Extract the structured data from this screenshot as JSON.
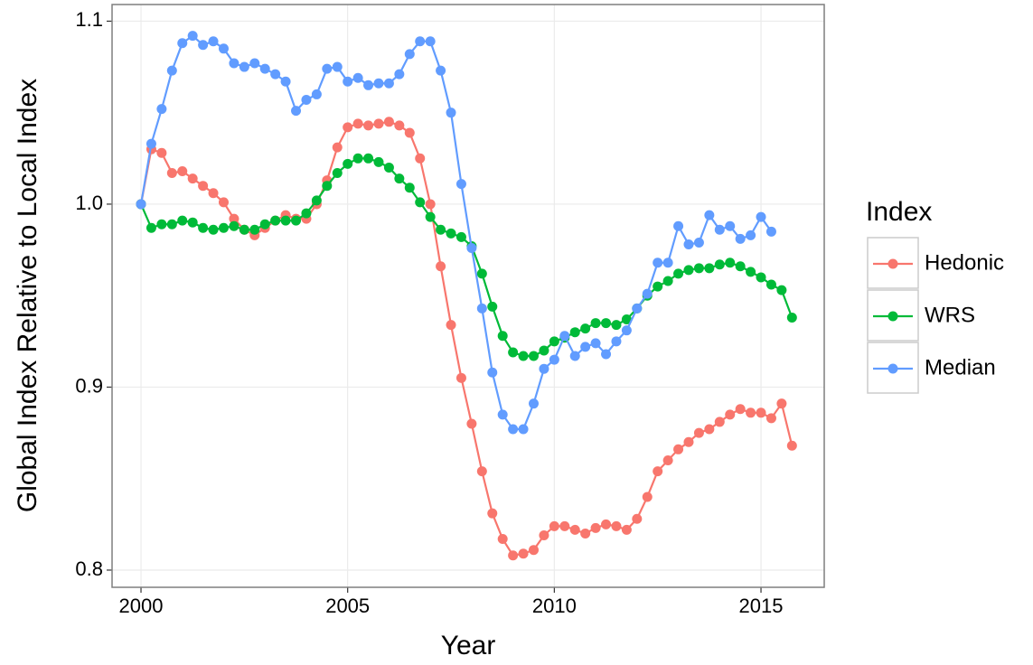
{
  "chart_data": {
    "type": "line",
    "xlabel": "Year",
    "ylabel": "Global Index Relative to Local Index",
    "legend_title": "Index",
    "legend_position": "right",
    "grid": true,
    "x": [
      2000,
      2000.25,
      2000.5,
      2000.75,
      2001,
      2001.25,
      2001.5,
      2001.75,
      2002,
      2002.25,
      2002.5,
      2002.75,
      2003,
      2003.25,
      2003.5,
      2003.75,
      2004,
      2004.25,
      2004.5,
      2004.75,
      2005,
      2005.25,
      2005.5,
      2005.75,
      2006,
      2006.25,
      2006.5,
      2006.75,
      2007,
      2007.25,
      2007.5,
      2007.75,
      2008,
      2008.25,
      2008.5,
      2008.75,
      2009,
      2009.25,
      2009.5,
      2009.75,
      2010,
      2010.25,
      2010.5,
      2010.75,
      2011,
      2011.25,
      2011.5,
      2011.75,
      2012,
      2012.25,
      2012.5,
      2012.75,
      2013,
      2013.25,
      2013.5,
      2013.75,
      2014,
      2014.25,
      2014.5,
      2014.75,
      2015,
      2015.25,
      2015.5,
      2015.75
    ],
    "series": [
      {
        "name": "Hedonic",
        "color": "#f8766d",
        "values": [
          1.0,
          1.03,
          1.028,
          1.017,
          1.018,
          1.014,
          1.01,
          1.006,
          1.001,
          0.992,
          0.986,
          0.983,
          0.987,
          0.991,
          0.994,
          0.992,
          0.992,
          1.0,
          1.013,
          1.031,
          1.042,
          1.044,
          1.043,
          1.044,
          1.045,
          1.043,
          1.039,
          1.025,
          1.0,
          0.966,
          0.934,
          0.905,
          0.88,
          0.854,
          0.831,
          0.817,
          0.808,
          0.809,
          0.811,
          0.819,
          0.824,
          0.824,
          0.822,
          0.82,
          0.823,
          0.825,
          0.824,
          0.822,
          0.828,
          0.84,
          0.854,
          0.86,
          0.866,
          0.87,
          0.875,
          0.877,
          0.881,
          0.885,
          0.888,
          0.886,
          0.886,
          0.883,
          0.891,
          0.868
        ]
      },
      {
        "name": "WRS",
        "color": "#00ba38",
        "values": [
          1.0,
          0.987,
          0.989,
          0.989,
          0.991,
          0.99,
          0.987,
          0.986,
          0.987,
          0.988,
          0.986,
          0.986,
          0.989,
          0.991,
          0.991,
          0.991,
          0.995,
          1.002,
          1.01,
          1.017,
          1.022,
          1.025,
          1.025,
          1.023,
          1.02,
          1.014,
          1.009,
          1.001,
          0.993,
          0.986,
          0.984,
          0.982,
          0.977,
          0.962,
          0.944,
          0.928,
          0.919,
          0.917,
          0.917,
          0.92,
          0.925,
          0.927,
          0.93,
          0.932,
          0.935,
          0.935,
          0.934,
          0.937,
          0.943,
          0.95,
          0.955,
          0.958,
          0.962,
          0.964,
          0.965,
          0.965,
          0.967,
          0.968,
          0.966,
          0.963,
          0.96,
          0.956,
          0.953,
          0.938
        ]
      },
      {
        "name": "Median",
        "color": "#619cff",
        "values": [
          1.0,
          1.033,
          1.052,
          1.073,
          1.088,
          1.092,
          1.087,
          1.089,
          1.085,
          1.077,
          1.075,
          1.077,
          1.074,
          1.071,
          1.067,
          1.051,
          1.057,
          1.06,
          1.074,
          1.075,
          1.067,
          1.069,
          1.065,
          1.066,
          1.066,
          1.071,
          1.082,
          1.089,
          1.089,
          1.073,
          1.05,
          1.011,
          0.976,
          0.943,
          0.908,
          0.885,
          0.877,
          0.877,
          0.891,
          0.91,
          0.915,
          0.928,
          0.917,
          0.922,
          0.924,
          0.918,
          0.925,
          0.931,
          0.943,
          0.951,
          0.968,
          0.968,
          0.988,
          0.978,
          0.979,
          0.994,
          0.986,
          0.988,
          0.981,
          0.983,
          0.993,
          0.985,
          null,
          null
        ]
      }
    ],
    "xlim": [
      1999.3,
      2016.53
    ],
    "xticks": [
      2000,
      2005,
      2010,
      2015
    ],
    "ylim": [
      0.7906,
      1.1091
    ],
    "yticks": [
      {
        "value": 0.8,
        "label": "0.8"
      },
      {
        "value": 0.9,
        "label": "0.9"
      },
      {
        "value": 1.0,
        "label": "1.0"
      },
      {
        "value": 1.1,
        "label": "1.1"
      }
    ]
  }
}
